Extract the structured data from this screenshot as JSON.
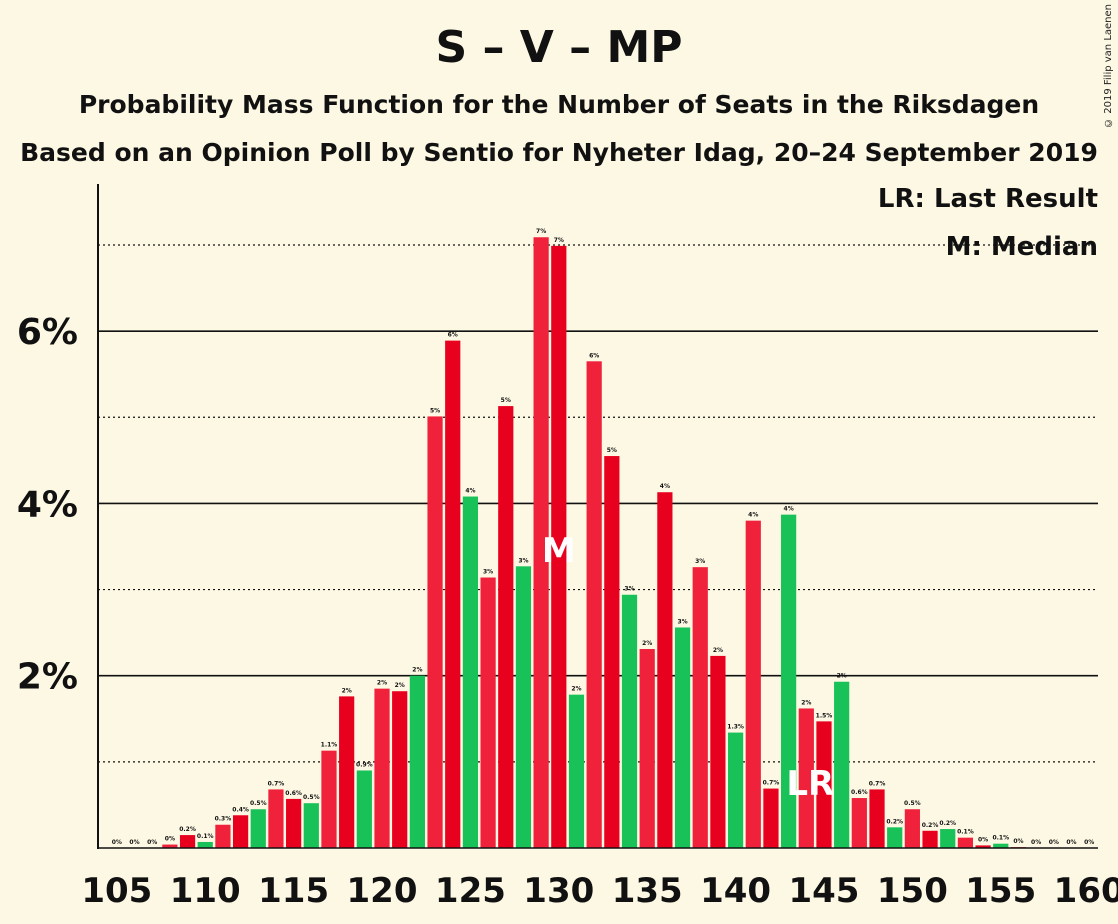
{
  "title": "S – V – MP",
  "subtitle1": "Probability Mass Function for the Number of Seats in the Riksdagen",
  "subtitle2": "Based on an Opinion Poll by Sentio for Nyheter Idag, 20–24 September 2019",
  "copyright": "© 2019 Filip van Laenen",
  "legend": {
    "last_result": "LR: Last Result",
    "median": "M: Median"
  },
  "colors": {
    "red": "#e8001f",
    "red_alt": "#f0213a",
    "green": "#18c258",
    "background": "#fdf8e4"
  },
  "chart_data": {
    "type": "bar",
    "xlabel": "",
    "ylabel": "",
    "ylim": [
      0,
      7.5
    ],
    "y_ticks": [
      {
        "value": 2,
        "label": "2%"
      },
      {
        "value": 4,
        "label": "4%"
      },
      {
        "value": 6,
        "label": "6%"
      }
    ],
    "dotted_gridlines": [
      1,
      3,
      5,
      7
    ],
    "x_ticks": [
      105,
      110,
      115,
      120,
      125,
      130,
      135,
      140,
      145,
      150,
      155,
      160
    ],
    "median": 130,
    "last_result": 144,
    "median_marker": "M",
    "last_result_marker": "LR",
    "bars": [
      {
        "x": 105,
        "value": 0,
        "label": "0%",
        "color": "red"
      },
      {
        "x": 106,
        "value": 0,
        "label": "0%",
        "color": "red"
      },
      {
        "x": 107,
        "value": 0,
        "label": "0%",
        "color": "green"
      },
      {
        "x": 108,
        "value": 0.04,
        "label": "0%",
        "color": "red"
      },
      {
        "x": 109,
        "value": 0.15,
        "label": "0.2%",
        "color": "red"
      },
      {
        "x": 110,
        "value": 0.07,
        "label": "0.1%",
        "color": "green"
      },
      {
        "x": 111,
        "value": 0.27,
        "label": "0.3%",
        "color": "red"
      },
      {
        "x": 112,
        "value": 0.38,
        "label": "0.4%",
        "color": "red"
      },
      {
        "x": 113,
        "value": 0.45,
        "label": "0.5%",
        "color": "green"
      },
      {
        "x": 114,
        "value": 0.68,
        "label": "0.7%",
        "color": "red"
      },
      {
        "x": 115,
        "value": 0.57,
        "label": "0.6%",
        "color": "red"
      },
      {
        "x": 116,
        "value": 0.52,
        "label": "0.5%",
        "color": "green"
      },
      {
        "x": 117,
        "value": 1.13,
        "label": "1.1%",
        "color": "red"
      },
      {
        "x": 118,
        "value": 1.76,
        "label": "2%",
        "color": "red"
      },
      {
        "x": 119,
        "value": 0.9,
        "label": "0.9%",
        "color": "green"
      },
      {
        "x": 120,
        "value": 1.85,
        "label": "2%",
        "color": "red"
      },
      {
        "x": 121,
        "value": 1.82,
        "label": "2%",
        "color": "red"
      },
      {
        "x": 122,
        "value": 2.0,
        "label": "2%",
        "color": "green"
      },
      {
        "x": 123,
        "value": 5.01,
        "label": "5%",
        "color": "red"
      },
      {
        "x": 124,
        "value": 5.89,
        "label": "6%",
        "color": "red"
      },
      {
        "x": 125,
        "value": 4.08,
        "label": "4%",
        "color": "green"
      },
      {
        "x": 126,
        "value": 3.14,
        "label": "3%",
        "color": "red"
      },
      {
        "x": 127,
        "value": 5.13,
        "label": "5%",
        "color": "red"
      },
      {
        "x": 128,
        "value": 3.27,
        "label": "3%",
        "color": "green"
      },
      {
        "x": 129,
        "value": 7.09,
        "label": "7%",
        "color": "red"
      },
      {
        "x": 130,
        "value": 6.99,
        "label": "7%",
        "color": "red"
      },
      {
        "x": 131,
        "value": 1.78,
        "label": "2%",
        "color": "green"
      },
      {
        "x": 132,
        "value": 5.65,
        "label": "6%",
        "color": "red"
      },
      {
        "x": 133,
        "value": 4.55,
        "label": "5%",
        "color": "red"
      },
      {
        "x": 134,
        "value": 2.94,
        "label": "3%",
        "color": "green"
      },
      {
        "x": 135,
        "value": 2.31,
        "label": "2%",
        "color": "red"
      },
      {
        "x": 136,
        "value": 4.13,
        "label": "4%",
        "color": "red"
      },
      {
        "x": 137,
        "value": 2.56,
        "label": "3%",
        "color": "green"
      },
      {
        "x": 138,
        "value": 3.26,
        "label": "3%",
        "color": "red"
      },
      {
        "x": 139,
        "value": 2.23,
        "label": "2%",
        "color": "red"
      },
      {
        "x": 140,
        "value": 1.34,
        "label": "1.3%",
        "color": "green"
      },
      {
        "x": 141,
        "value": 3.8,
        "label": "4%",
        "color": "red"
      },
      {
        "x": 142,
        "value": 0.69,
        "label": "0.7%",
        "color": "red"
      },
      {
        "x": 143,
        "value": 3.87,
        "label": "4%",
        "color": "green"
      },
      {
        "x": 144,
        "value": 1.62,
        "label": "2%",
        "color": "red"
      },
      {
        "x": 145,
        "value": 1.47,
        "label": "1.5%",
        "color": "red"
      },
      {
        "x": 146,
        "value": 1.93,
        "label": "2%",
        "color": "green"
      },
      {
        "x": 147,
        "value": 0.58,
        "label": "0.6%",
        "color": "red"
      },
      {
        "x": 148,
        "value": 0.68,
        "label": "0.7%",
        "color": "red"
      },
      {
        "x": 149,
        "value": 0.24,
        "label": "0.2%",
        "color": "green"
      },
      {
        "x": 150,
        "value": 0.45,
        "label": "0.5%",
        "color": "red"
      },
      {
        "x": 151,
        "value": 0.2,
        "label": "0.2%",
        "color": "red"
      },
      {
        "x": 152,
        "value": 0.22,
        "label": "0.2%",
        "color": "green"
      },
      {
        "x": 153,
        "value": 0.12,
        "label": "0.1%",
        "color": "red"
      },
      {
        "x": 154,
        "value": 0.03,
        "label": "0%",
        "color": "red"
      },
      {
        "x": 155,
        "value": 0.05,
        "label": "0.1%",
        "color": "green"
      },
      {
        "x": 156,
        "value": 0.01,
        "label": "0%",
        "color": "red"
      },
      {
        "x": 157,
        "value": 0,
        "label": "0%",
        "color": "red"
      },
      {
        "x": 158,
        "value": 0,
        "label": "0%",
        "color": "green"
      },
      {
        "x": 159,
        "value": 0,
        "label": "0%",
        "color": "red"
      },
      {
        "x": 160,
        "value": 0,
        "label": "0%",
        "color": "red"
      }
    ]
  }
}
